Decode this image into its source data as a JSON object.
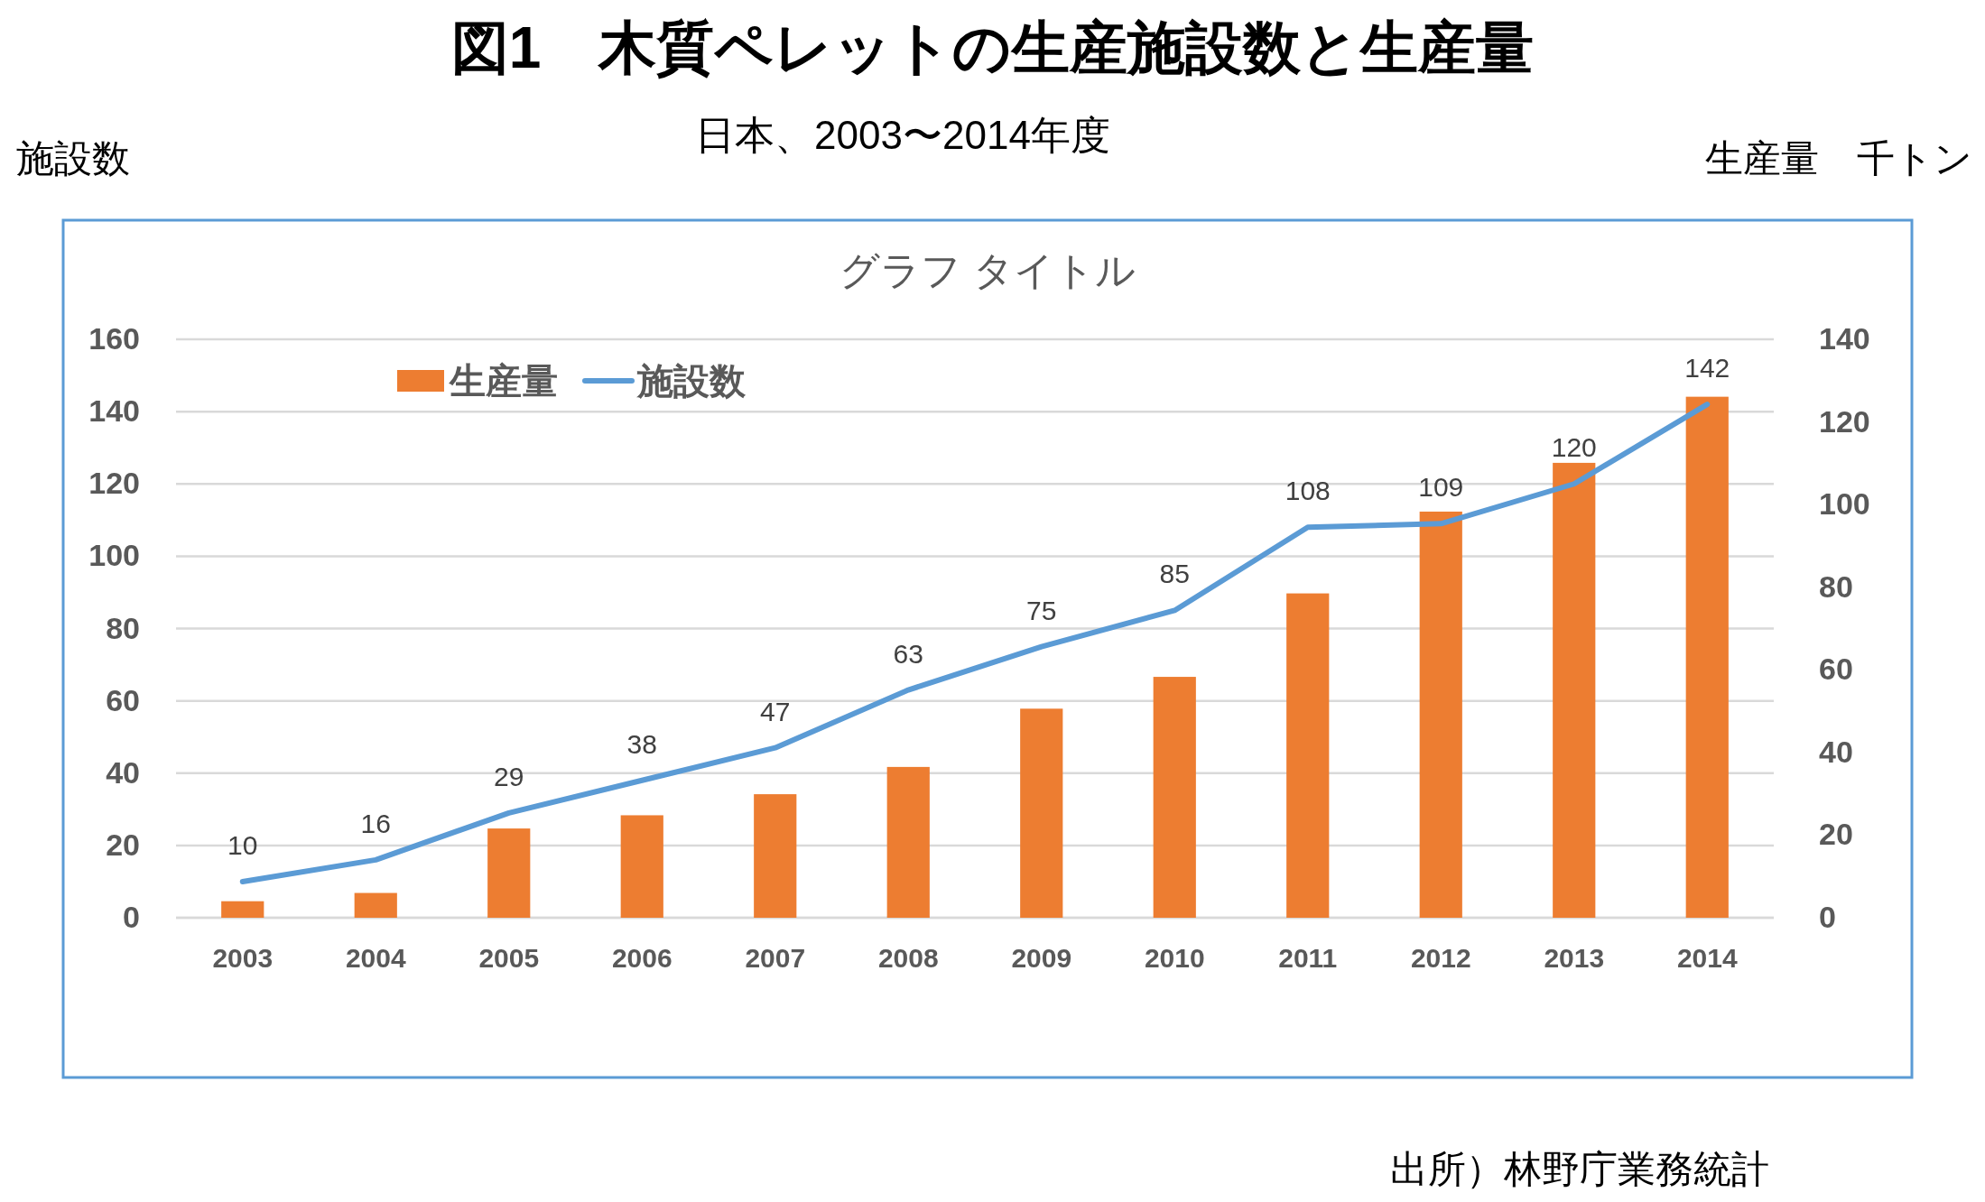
{
  "chart_data": {
    "type": "bar",
    "title": "図1　木質ペレットの生産施設数と生産量",
    "subtitle": "日本、2003〜2014年度",
    "ylabel": "施設数",
    "y2label": "生産量　千トン",
    "annotations": [
      "グラフ タイトル",
      "出所）林野庁業務統計"
    ],
    "categories": [
      "2003",
      "2004",
      "2005",
      "2006",
      "2007",
      "2008",
      "2009",
      "2010",
      "2011",
      "2012",
      "2013",
      "2014"
    ],
    "series": [
      {
        "name": "生産量",
        "axis": "y2",
        "color": "#ed7d31",
        "values": [
          4,
          6,
          21.6,
          24.8,
          29.9,
          36.5,
          50.6,
          58.3,
          78.5,
          98.3,
          110.1,
          126.1
        ]
      },
      {
        "name": "施設数",
        "type": "line",
        "color": "#5b9bd5",
        "values": [
          10,
          16,
          29,
          38,
          47,
          63,
          75,
          85,
          108,
          109,
          120,
          142
        ],
        "value_labels": [
          "10",
          "16",
          "29",
          "38",
          "47",
          "63",
          "75",
          "85",
          "108",
          "109",
          "120",
          "142"
        ]
      }
    ],
    "ylim": [
      0,
      160
    ],
    "yticks": [
      0,
      20,
      40,
      60,
      80,
      100,
      120,
      140,
      160
    ],
    "y2lim": [
      0,
      140
    ],
    "y2ticks": [
      0,
      20,
      40,
      60,
      80,
      100,
      120,
      140
    ],
    "grid": "y",
    "legend": "top left"
  }
}
